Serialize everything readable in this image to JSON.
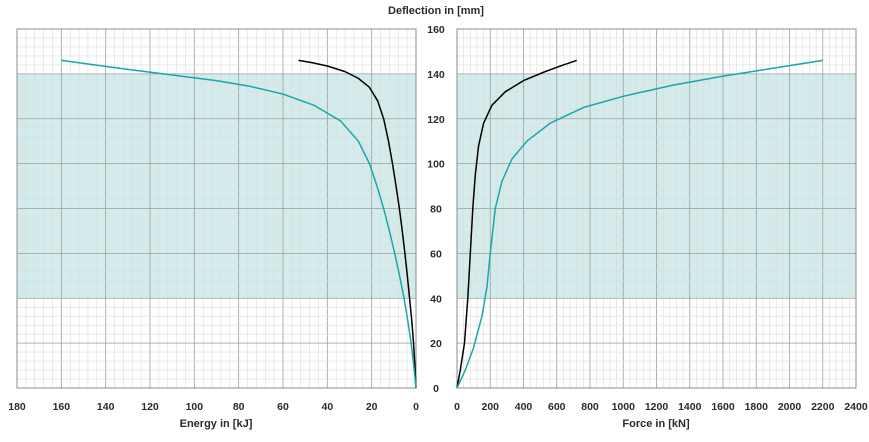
{
  "title": "Deflection in [mm]",
  "colors": {
    "band": "#d3ebeb",
    "series_black": "#000000",
    "series_teal": "#1aa6a8"
  },
  "chart_data": [
    {
      "type": "line",
      "panel": "energy",
      "xlabel": "Energy in [kJ]",
      "ylabel": "Deflection in [mm]",
      "xlim": [
        180,
        0
      ],
      "ylim": [
        0,
        160
      ],
      "xticks": [
        "180",
        "160",
        "140",
        "120",
        "100",
        "80",
        "60",
        "40",
        "20",
        "0"
      ],
      "shaded_band": [
        40,
        140
      ],
      "grid": true,
      "series": [
        {
          "color": "black",
          "points": [
            [
              0,
              0
            ],
            [
              0.5,
              10
            ],
            [
              1.1,
              20
            ],
            [
              1.9,
              30
            ],
            [
              2.9,
              40
            ],
            [
              3.9,
              50
            ],
            [
              5.0,
              60
            ],
            [
              6.2,
              70
            ],
            [
              7.5,
              80
            ],
            [
              9.0,
              90
            ],
            [
              10.6,
              100
            ],
            [
              12.4,
              110
            ],
            [
              14.6,
              120
            ],
            [
              17.3,
              128
            ],
            [
              21.0,
              134
            ],
            [
              26.0,
              138
            ],
            [
              32.0,
              141
            ],
            [
              40.0,
              143.5
            ],
            [
              47.0,
              145
            ],
            [
              53.0,
              146
            ]
          ]
        },
        {
          "color": "teal",
          "points": [
            [
              0,
              0
            ],
            [
              1.0,
              10
            ],
            [
              2.2,
              20
            ],
            [
              3.7,
              30
            ],
            [
              5.4,
              40
            ],
            [
              7.4,
              50
            ],
            [
              9.6,
              60
            ],
            [
              12.0,
              70
            ],
            [
              14.6,
              80
            ],
            [
              17.6,
              90
            ],
            [
              21.0,
              100
            ],
            [
              26.0,
              110
            ],
            [
              34.0,
              119
            ],
            [
              46.0,
              126
            ],
            [
              60.0,
              131
            ],
            [
              75.0,
              134.5
            ],
            [
              90.0,
              137
            ],
            [
              110.0,
              139.5
            ],
            [
              130.0,
              142
            ],
            [
              145.0,
              144
            ],
            [
              160.0,
              146
            ]
          ]
        }
      ]
    },
    {
      "type": "line",
      "panel": "force",
      "xlabel": "Force in [kN]",
      "ylabel": "Deflection in [mm]",
      "xlim": [
        0,
        2400
      ],
      "ylim": [
        0,
        160
      ],
      "xticks": [
        "0",
        "200",
        "400",
        "600",
        "800",
        "1000",
        "1200",
        "1400",
        "1600",
        "1800",
        "2000",
        "2200",
        "2400"
      ],
      "yticks": [
        "0",
        "20",
        "40",
        "60",
        "80",
        "100",
        "120",
        "140",
        "160"
      ],
      "shaded_band": [
        40,
        140
      ],
      "grid": true,
      "series": [
        {
          "color": "black",
          "points": [
            [
              0,
              0
            ],
            [
              20,
              8
            ],
            [
              45,
              20
            ],
            [
              65,
              40
            ],
            [
              80,
              60
            ],
            [
              95,
              80
            ],
            [
              110,
              95
            ],
            [
              130,
              108
            ],
            [
              160,
              118
            ],
            [
              210,
              126
            ],
            [
              290,
              132
            ],
            [
              400,
              137
            ],
            [
              530,
              141
            ],
            [
              640,
              144
            ],
            [
              720,
              146
            ]
          ]
        },
        {
          "color": "teal",
          "points": [
            [
              0,
              0
            ],
            [
              50,
              8
            ],
            [
              100,
              18
            ],
            [
              150,
              32
            ],
            [
              180,
              45
            ],
            [
              200,
              60
            ],
            [
              230,
              80
            ],
            [
              270,
              92
            ],
            [
              330,
              102
            ],
            [
              420,
              110
            ],
            [
              560,
              118
            ],
            [
              760,
              125
            ],
            [
              1000,
              130
            ],
            [
              1300,
              135
            ],
            [
              1600,
              139
            ],
            [
              1900,
              142.5
            ],
            [
              2200,
              146
            ]
          ]
        }
      ]
    }
  ]
}
